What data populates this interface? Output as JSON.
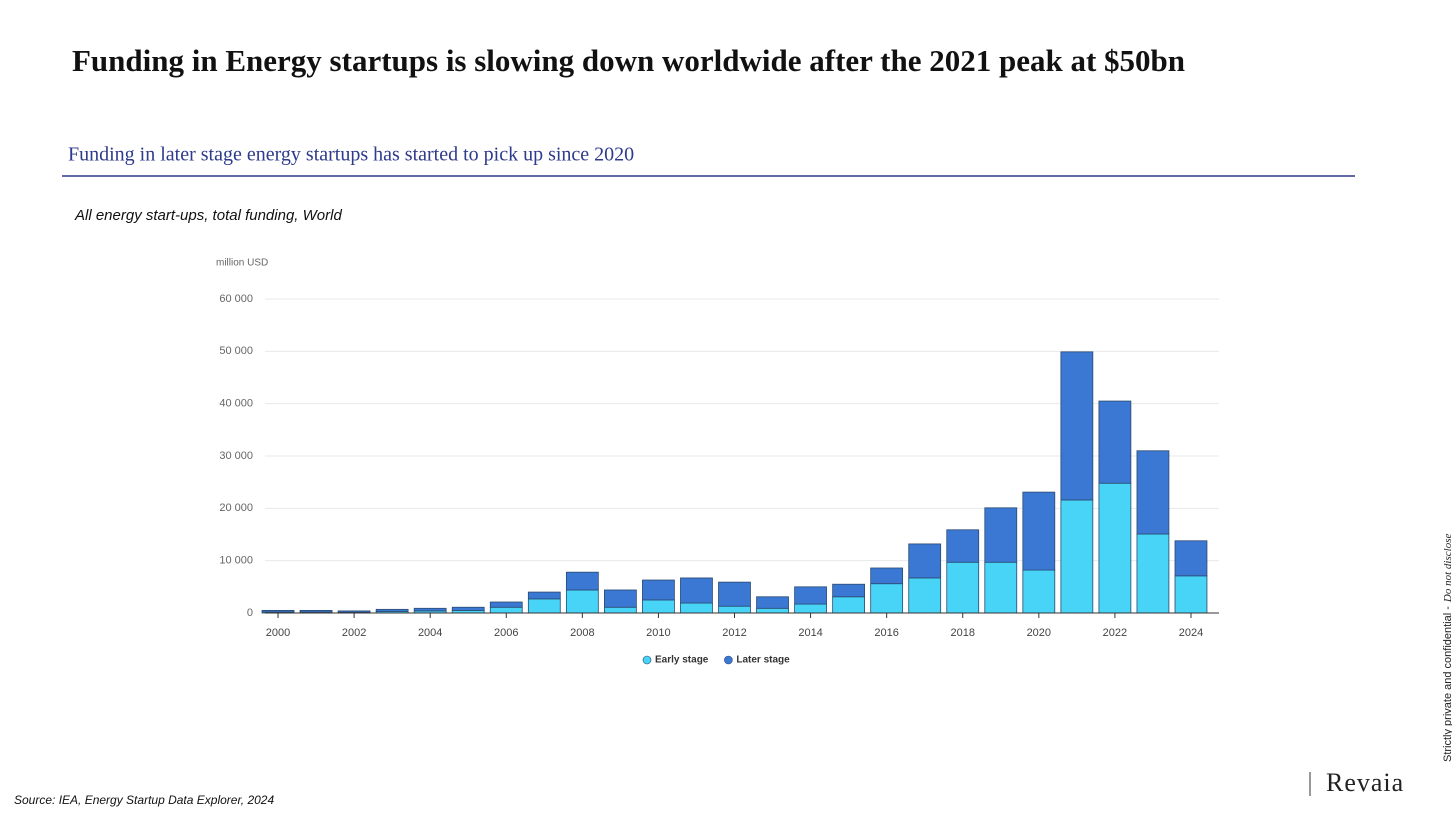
{
  "header": {
    "title": "Funding in Energy startups is slowing down worldwide after the 2021 peak at $50bn",
    "subtitle": "Funding in later stage energy startups has started to pick up since 2020"
  },
  "chart_data": {
    "type": "stacked_bar",
    "title": "All energy start-ups, total funding, World",
    "y_label": "million USD",
    "categories": [
      "2000",
      null,
      "2002",
      null,
      "2004",
      null,
      "2006",
      null,
      "2008",
      null,
      "2010",
      null,
      "2012",
      null,
      "2014",
      null,
      "2016",
      null,
      "2018",
      null,
      "2020",
      null,
      "2022",
      null,
      "2024"
    ],
    "series": [
      {
        "name": "Early stage",
        "color": "#48d4f7",
        "values": [
          200,
          200,
          150,
          300,
          400,
          500,
          1100,
          2700,
          4400,
          1100,
          2500,
          1900,
          1300,
          900,
          1700,
          3100,
          5600,
          6700,
          9700,
          9700,
          8200,
          21600,
          24800,
          15100,
          7100
        ]
      },
      {
        "name": "Later stage",
        "color": "#3b78d4",
        "values": [
          300,
          300,
          250,
          400,
          500,
          600,
          1000,
          1300,
          3400,
          3300,
          3800,
          4800,
          4600,
          2200,
          3300,
          2400,
          3000,
          6500,
          6200,
          10400,
          14900,
          28300,
          15700,
          15900,
          6700
        ]
      }
    ],
    "ylim": [
      0,
      60000
    ],
    "yticks": [
      0,
      {
        "value": 10000,
        "label": "10 000"
      },
      {
        "value": 20000,
        "label": "20 000"
      },
      {
        "value": 30000,
        "label": "30 000"
      },
      {
        "value": 40000,
        "label": "40 000"
      },
      {
        "value": 50000,
        "label": "50 000"
      },
      {
        "value": 60000,
        "label": "60 000"
      }
    ],
    "grid": true,
    "legend": "bottom"
  },
  "footer": {
    "source": "Source: IEA, Energy Startup Data Explorer, 2024",
    "confidential": "Strictly private and confidential -",
    "disclose": "Do not disclose",
    "logo": "Revaia"
  }
}
